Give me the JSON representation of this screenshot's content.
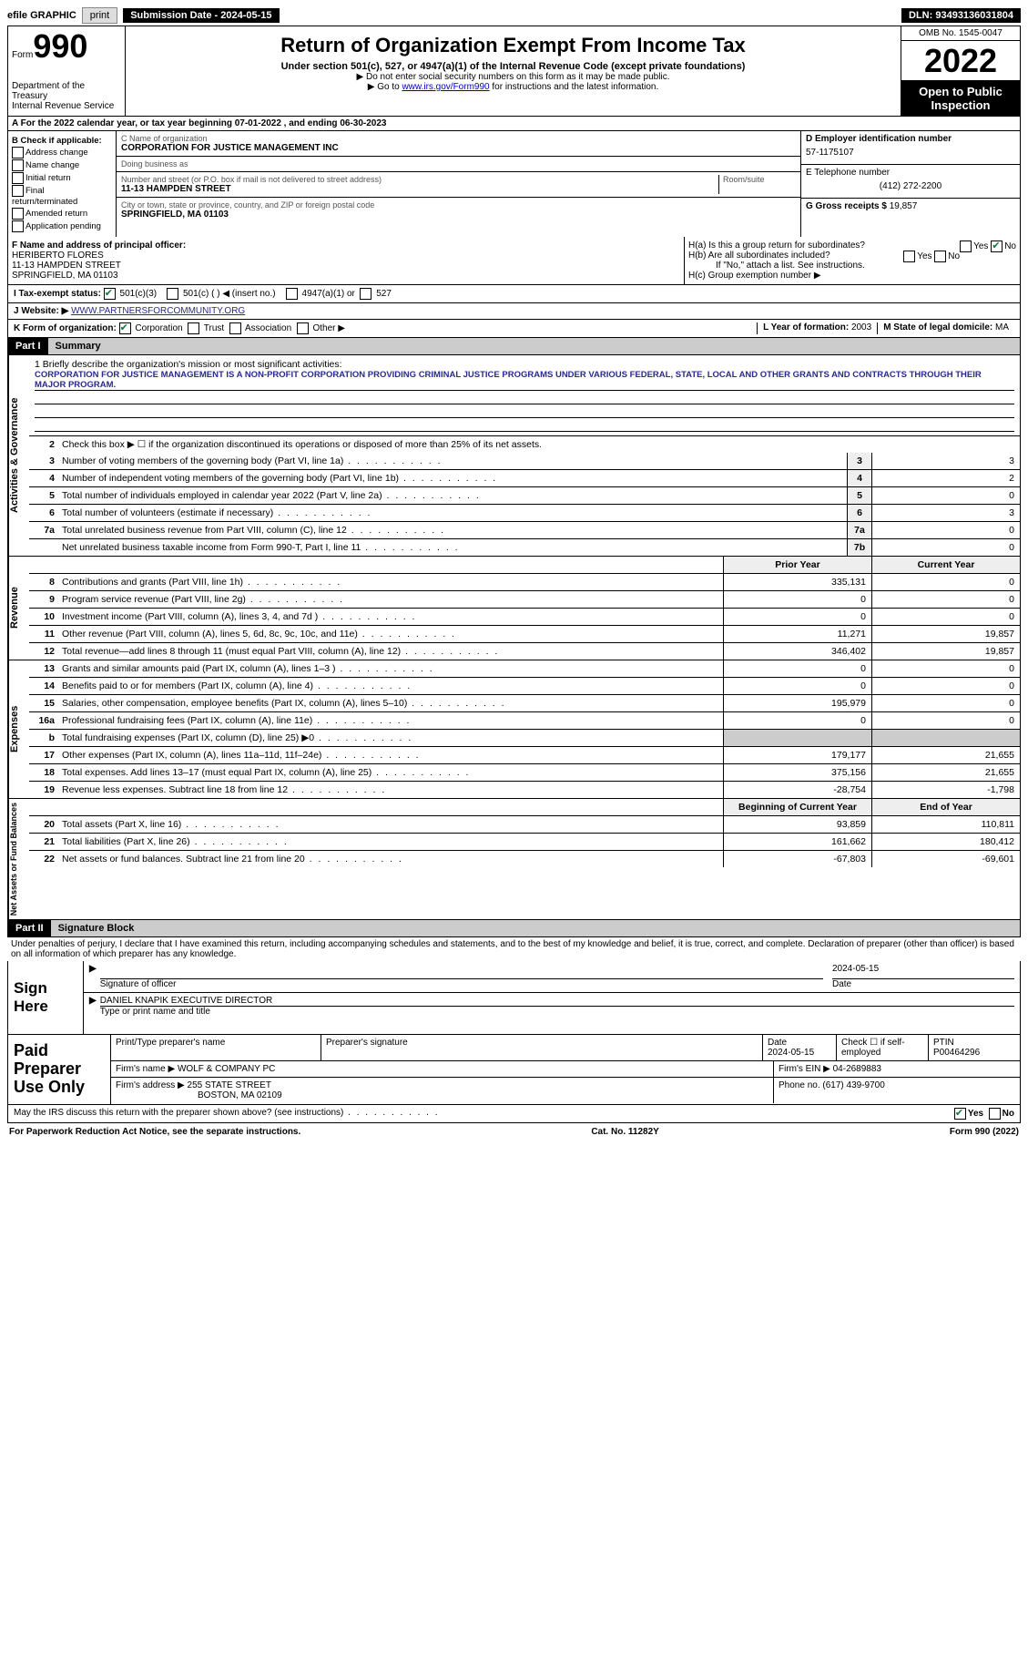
{
  "top": {
    "efile": "efile GRAPHIC",
    "print": "print",
    "sub_label": "Submission Date - 2024-05-15",
    "dln": "DLN: 93493136031804"
  },
  "hdr": {
    "form": "Form",
    "num": "990",
    "title": "Return of Organization Exempt From Income Tax",
    "sub": "Under section 501(c), 527, or 4947(a)(1) of the Internal Revenue Code (except private foundations)",
    "note1": "▶ Do not enter social security numbers on this form as it may be made public.",
    "note2_pre": "▶ Go to ",
    "note2_link": "www.irs.gov/Form990",
    "note2_post": " for instructions and the latest information.",
    "dept": "Department of the Treasury\nInternal Revenue Service",
    "omb": "OMB No. 1545-0047",
    "year": "2022",
    "open": "Open to Public Inspection"
  },
  "a": "A For the 2022 calendar year, or tax year beginning 07-01-2022    , and ending 06-30-2023",
  "b": {
    "hdr": "B Check if applicable:",
    "items": [
      "Address change",
      "Name change",
      "Initial return",
      "Final return/terminated",
      "Amended return",
      "Application pending"
    ]
  },
  "c": {
    "name_lbl": "C Name of organization",
    "name": "CORPORATION FOR JUSTICE MANAGEMENT INC",
    "dba_lbl": "Doing business as",
    "dba": "",
    "addr_lbl": "Number and street (or P.O. box if mail is not delivered to street address)",
    "room_lbl": "Room/suite",
    "addr": "11-13 HAMPDEN STREET",
    "city_lbl": "City or town, state or province, country, and ZIP or foreign postal code",
    "city": "SPRINGFIELD, MA  01103"
  },
  "d": {
    "lbl": "D Employer identification number",
    "val": "57-1175107"
  },
  "e": {
    "lbl": "E Telephone number",
    "val": "(412) 272-2200"
  },
  "g": {
    "lbl": "G Gross receipts $",
    "val": "19,857"
  },
  "f": {
    "lbl": "F Name and address of principal officer:",
    "name": "HERIBERTO FLORES",
    "addr1": "11-13 HAMPDEN STREET",
    "addr2": "SPRINGFIELD, MA  01103"
  },
  "h": {
    "a": "H(a)  Is this a group return for subordinates?",
    "b": "H(b)  Are all subordinates included?",
    "b_note": "If \"No,\" attach a list. See instructions.",
    "c": "H(c)  Group exemption number ▶",
    "yes": "Yes",
    "no": "No"
  },
  "i": {
    "lbl": "I    Tax-exempt status:",
    "o1": "501(c)(3)",
    "o2": "501(c) (  ) ◀ (insert no.)",
    "o3": "4947(a)(1) or",
    "o4": "527"
  },
  "j": {
    "lbl": "J    Website: ▶",
    "val": "WWW.PARTNERSFORCOMMUNITY.ORG"
  },
  "k": {
    "lbl": "K Form of organization:",
    "o1": "Corporation",
    "o2": "Trust",
    "o3": "Association",
    "o4": "Other ▶"
  },
  "l": {
    "lbl": "L Year of formation:",
    "val": "2003"
  },
  "m": {
    "lbl": "M State of legal domicile:",
    "val": "MA"
  },
  "part1": {
    "tag": "Part I",
    "title": "Summary"
  },
  "mission_lbl": "1  Briefly describe the organization's mission or most significant activities:",
  "mission": "CORPORATION FOR JUSTICE MANAGEMENT IS A NON-PROFIT CORPORATION PROVIDING CRIMINAL JUSTICE PROGRAMS UNDER VARIOUS FEDERAL, STATE, LOCAL AND OTHER GRANTS AND CONTRACTS THROUGH THEIR MAJOR PROGRAM.",
  "line2": "Check this box ▶ ☐ if the organization discontinued its operations or disposed of more than 25% of its net assets.",
  "gov": [
    {
      "n": "3",
      "d": "Number of voting members of the governing body (Part VI, line 1a)",
      "b": "3",
      "v": "3"
    },
    {
      "n": "4",
      "d": "Number of independent voting members of the governing body (Part VI, line 1b)",
      "b": "4",
      "v": "2"
    },
    {
      "n": "5",
      "d": "Total number of individuals employed in calendar year 2022 (Part V, line 2a)",
      "b": "5",
      "v": "0"
    },
    {
      "n": "6",
      "d": "Total number of volunteers (estimate if necessary)",
      "b": "6",
      "v": "3"
    },
    {
      "n": "7a",
      "d": "Total unrelated business revenue from Part VIII, column (C), line 12",
      "b": "7a",
      "v": "0"
    },
    {
      "n": "",
      "d": "Net unrelated business taxable income from Form 990-T, Part I, line 11",
      "b": "7b",
      "v": "0"
    }
  ],
  "col_prior": "Prior Year",
  "col_current": "Current Year",
  "rev": [
    {
      "n": "8",
      "d": "Contributions and grants (Part VIII, line 1h)",
      "p": "335,131",
      "c": "0"
    },
    {
      "n": "9",
      "d": "Program service revenue (Part VIII, line 2g)",
      "p": "0",
      "c": "0"
    },
    {
      "n": "10",
      "d": "Investment income (Part VIII, column (A), lines 3, 4, and 7d )",
      "p": "0",
      "c": "0"
    },
    {
      "n": "11",
      "d": "Other revenue (Part VIII, column (A), lines 5, 6d, 8c, 9c, 10c, and 11e)",
      "p": "11,271",
      "c": "19,857"
    },
    {
      "n": "12",
      "d": "Total revenue—add lines 8 through 11 (must equal Part VIII, column (A), line 12)",
      "p": "346,402",
      "c": "19,857"
    }
  ],
  "exp": [
    {
      "n": "13",
      "d": "Grants and similar amounts paid (Part IX, column (A), lines 1–3 )",
      "p": "0",
      "c": "0"
    },
    {
      "n": "14",
      "d": "Benefits paid to or for members (Part IX, column (A), line 4)",
      "p": "0",
      "c": "0"
    },
    {
      "n": "15",
      "d": "Salaries, other compensation, employee benefits (Part IX, column (A), lines 5–10)",
      "p": "195,979",
      "c": "0"
    },
    {
      "n": "16a",
      "d": "Professional fundraising fees (Part IX, column (A), line 11e)",
      "p": "0",
      "c": "0"
    },
    {
      "n": "b",
      "d": "Total fundraising expenses (Part IX, column (D), line 25) ▶0",
      "p": "",
      "c": "",
      "shade": true
    },
    {
      "n": "17",
      "d": "Other expenses (Part IX, column (A), lines 11a–11d, 11f–24e)",
      "p": "179,177",
      "c": "21,655"
    },
    {
      "n": "18",
      "d": "Total expenses. Add lines 13–17 (must equal Part IX, column (A), line 25)",
      "p": "375,156",
      "c": "21,655"
    },
    {
      "n": "19",
      "d": "Revenue less expenses. Subtract line 18 from line 12",
      "p": "-28,754",
      "c": "-1,798"
    }
  ],
  "col_beg": "Beginning of Current Year",
  "col_end": "End of Year",
  "net": [
    {
      "n": "20",
      "d": "Total assets (Part X, line 16)",
      "p": "93,859",
      "c": "110,811"
    },
    {
      "n": "21",
      "d": "Total liabilities (Part X, line 26)",
      "p": "161,662",
      "c": "180,412"
    },
    {
      "n": "22",
      "d": "Net assets or fund balances. Subtract line 21 from line 20",
      "p": "-67,803",
      "c": "-69,601"
    }
  ],
  "part2": {
    "tag": "Part II",
    "title": "Signature Block"
  },
  "penalty": "Under penalties of perjury, I declare that I have examined this return, including accompanying schedules and statements, and to the best of my knowledge and belief, it is true, correct, and complete. Declaration of preparer (other than officer) is based on all information of which preparer has any knowledge.",
  "sign": {
    "label": "Sign Here",
    "sig_lbl": "Signature of officer",
    "date": "2024-05-15",
    "date_lbl": "Date",
    "name": "DANIEL KNAPIK  EXECUTIVE DIRECTOR",
    "name_lbl": "Type or print name and title"
  },
  "prep": {
    "label": "Paid Preparer Use Only",
    "h1": "Print/Type preparer's name",
    "h2": "Preparer's signature",
    "h3": "Date",
    "h3v": "2024-05-15",
    "h4": "Check ☐ if self-employed",
    "h5": "PTIN",
    "h5v": "P00464296",
    "firm_lbl": "Firm's name    ▶",
    "firm": "WOLF & COMPANY PC",
    "ein_lbl": "Firm's EIN ▶",
    "ein": "04-2689883",
    "addr_lbl": "Firm's address ▶",
    "addr1": "255 STATE STREET",
    "addr2": "BOSTON, MA  02109",
    "phone_lbl": "Phone no.",
    "phone": "(617) 439-9700"
  },
  "discuss": "May the IRS discuss this return with the preparer shown above? (see instructions)",
  "foot": {
    "l": "For Paperwork Reduction Act Notice, see the separate instructions.",
    "m": "Cat. No. 11282Y",
    "r": "Form 990 (2022)"
  },
  "vtabs": {
    "gov": "Activities & Governance",
    "rev": "Revenue",
    "exp": "Expenses",
    "net": "Net Assets or Fund Balances"
  }
}
